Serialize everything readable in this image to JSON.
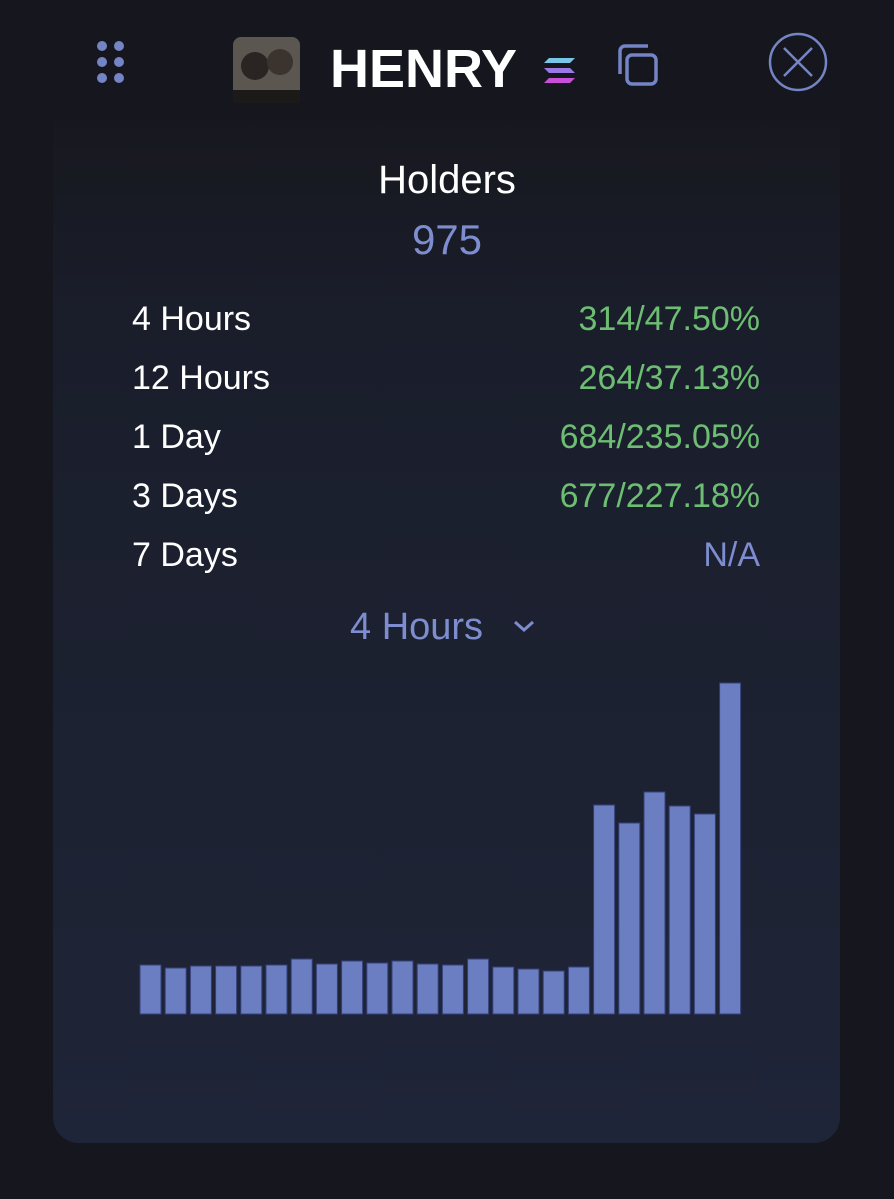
{
  "header": {
    "title": "HENRY"
  },
  "holders": {
    "label": "Holders",
    "value": "975"
  },
  "rows": [
    {
      "label": "4 Hours",
      "value": "314/47.50%"
    },
    {
      "label": "12 Hours",
      "value": "264/37.13%"
    },
    {
      "label": "1 Day",
      "value": "684/235.05%"
    },
    {
      "label": "3 Days",
      "value": "677/227.18%"
    },
    {
      "label": "7 Days",
      "value": "N/A"
    }
  ],
  "dropdown": {
    "label": "4 Hours"
  },
  "chart_data": {
    "type": "bar",
    "color": "#6b7ec2",
    "values": [
      49,
      46,
      48,
      48,
      48,
      49,
      55,
      50,
      53,
      51,
      53,
      50,
      49,
      55,
      47,
      45,
      43,
      47,
      209,
      191,
      222,
      208,
      200,
      331
    ]
  }
}
